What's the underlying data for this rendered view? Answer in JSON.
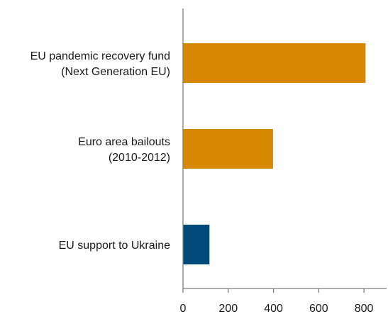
{
  "chart_data": {
    "type": "bar",
    "orientation": "horizontal",
    "categories": [
      [
        "EU pandemic recovery fund",
        "(Next Generation EU)"
      ],
      [
        "Euro area bailouts",
        "(2010-2012)"
      ],
      [
        "EU support to Ukraine"
      ]
    ],
    "values": [
      807,
      398,
      117
    ],
    "bar_colors": [
      "#d68800",
      "#d68800",
      "#004b7a"
    ],
    "xlim": [
      0,
      900
    ],
    "xticks": [
      0,
      200,
      400,
      600,
      800
    ],
    "title": "",
    "xlabel": "",
    "ylabel": "",
    "grid": false,
    "legend": "none"
  }
}
